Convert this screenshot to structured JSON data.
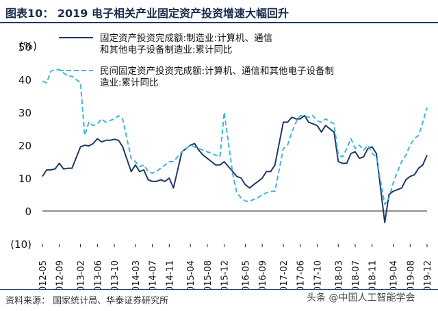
{
  "header": {
    "title": "图表10：  2019 电子相关产业固定资产投资增速大幅回升"
  },
  "footer": {
    "source": "资料来源：  国家统计局、华泰证券研究所",
    "watermark": "头条 @中国人工智能学会"
  },
  "colors": {
    "series_1": "#1f3864",
    "series_2": "#3fb6d9",
    "title": "#1a2b4c",
    "rule": "#1f3864"
  },
  "chart_data": {
    "type": "line",
    "title": "",
    "xlabel": "",
    "ylabel": "(%)",
    "ylim": [
      -10,
      50
    ],
    "yticks": [
      -10,
      0,
      10,
      20,
      30,
      40,
      50
    ],
    "ytick_labels": [
      "(10)",
      "0",
      "10",
      "20",
      "30",
      "40",
      "50"
    ],
    "grid": false,
    "legend_position": "top",
    "xtick_labels": [
      "2012-05",
      "2012-09",
      "2013-02",
      "2013-06",
      "2013-10",
      "2014-03",
      "2014-07",
      "2014-11",
      "2015-04",
      "2015-08",
      "2015-12",
      "2016-05",
      "2016-09",
      "2017-02",
      "2017-06",
      "2017-10",
      "2018-03",
      "2018-07",
      "2018-11",
      "2019-04",
      "2019-08",
      "2019-12"
    ],
    "x": [
      "2012-05",
      "2012-06",
      "2012-07",
      "2012-08",
      "2012-09",
      "2012-10",
      "2012-11",
      "2012-12",
      "2013-02",
      "2013-03",
      "2013-04",
      "2013-05",
      "2013-06",
      "2013-07",
      "2013-08",
      "2013-09",
      "2013-10",
      "2013-11",
      "2013-12",
      "2014-02",
      "2014-03",
      "2014-04",
      "2014-05",
      "2014-06",
      "2014-07",
      "2014-08",
      "2014-09",
      "2014-10",
      "2014-11",
      "2014-12",
      "2015-02",
      "2015-03",
      "2015-04",
      "2015-05",
      "2015-06",
      "2015-07",
      "2015-08",
      "2015-09",
      "2015-10",
      "2015-11",
      "2015-12",
      "2016-02",
      "2016-03",
      "2016-04",
      "2016-05",
      "2016-06",
      "2016-07",
      "2016-08",
      "2016-09",
      "2016-10",
      "2016-11",
      "2016-12",
      "2017-02",
      "2017-03",
      "2017-04",
      "2017-05",
      "2017-06",
      "2017-07",
      "2017-08",
      "2017-09",
      "2017-10",
      "2017-11",
      "2017-12",
      "2018-02",
      "2018-03",
      "2018-04",
      "2018-05",
      "2018-06",
      "2018-07",
      "2018-08",
      "2018-09",
      "2018-10",
      "2018-11",
      "2018-12",
      "2019-02",
      "2019-03",
      "2019-04",
      "2019-05",
      "2019-06",
      "2019-07",
      "2019-08",
      "2019-09",
      "2019-10",
      "2019-11",
      "2019-12"
    ],
    "series": [
      {
        "name": "固定资产投资完成额:制造业:计算机、通信和其他电子设备制造业:累计同比",
        "style": "solid",
        "values": [
          10.5,
          12.5,
          12.5,
          12.8,
          14.5,
          12.8,
          13,
          13,
          19.5,
          20,
          19.8,
          20.5,
          22,
          21,
          21.5,
          21.5,
          21.8,
          21.5,
          19.5,
          12,
          14,
          12,
          12.5,
          9.5,
          9,
          9,
          9.5,
          9,
          10,
          7,
          18,
          19,
          20,
          20.5,
          18.5,
          17,
          16,
          15,
          14,
          14,
          15,
          12,
          10.5,
          10,
          8,
          7,
          8,
          9,
          10,
          12,
          12,
          14,
          27,
          27,
          28.5,
          28,
          28,
          29,
          27,
          26.5,
          26,
          24,
          26,
          24,
          15,
          14.5,
          14.5,
          17.5,
          18,
          16,
          16.5,
          19,
          19.5,
          17.5,
          -3.5,
          5,
          6,
          6.5,
          7,
          9.5,
          10.5,
          11,
          13,
          14,
          17
        ]
      },
      {
        "name": "民间固定资产投资完成额:计算机、通信和其他电子设备制造业:累计同比",
        "style": "dashed",
        "values": [
          39.5,
          39,
          42.5,
          43,
          43,
          42,
          41,
          41,
          39,
          23,
          27,
          26,
          26.5,
          28,
          27,
          27.5,
          28,
          29,
          28,
          16,
          15,
          13.5,
          14,
          12,
          11.5,
          12,
          13,
          14,
          15,
          15,
          18,
          19,
          20,
          19.5,
          19,
          18.5,
          18,
          17.5,
          17,
          16.5,
          30,
          11.5,
          5.5,
          4,
          3,
          3,
          3.5,
          4,
          5,
          5.5,
          6,
          6,
          19,
          20,
          24,
          27,
          29,
          29,
          28.5,
          29,
          27.5,
          27,
          28,
          26.5,
          17,
          16.5,
          19,
          22,
          19,
          20,
          18.5,
          20,
          17.5,
          16.5,
          2,
          4,
          8.5,
          12,
          15,
          17,
          20,
          22,
          23,
          27,
          31.5
        ]
      }
    ]
  }
}
